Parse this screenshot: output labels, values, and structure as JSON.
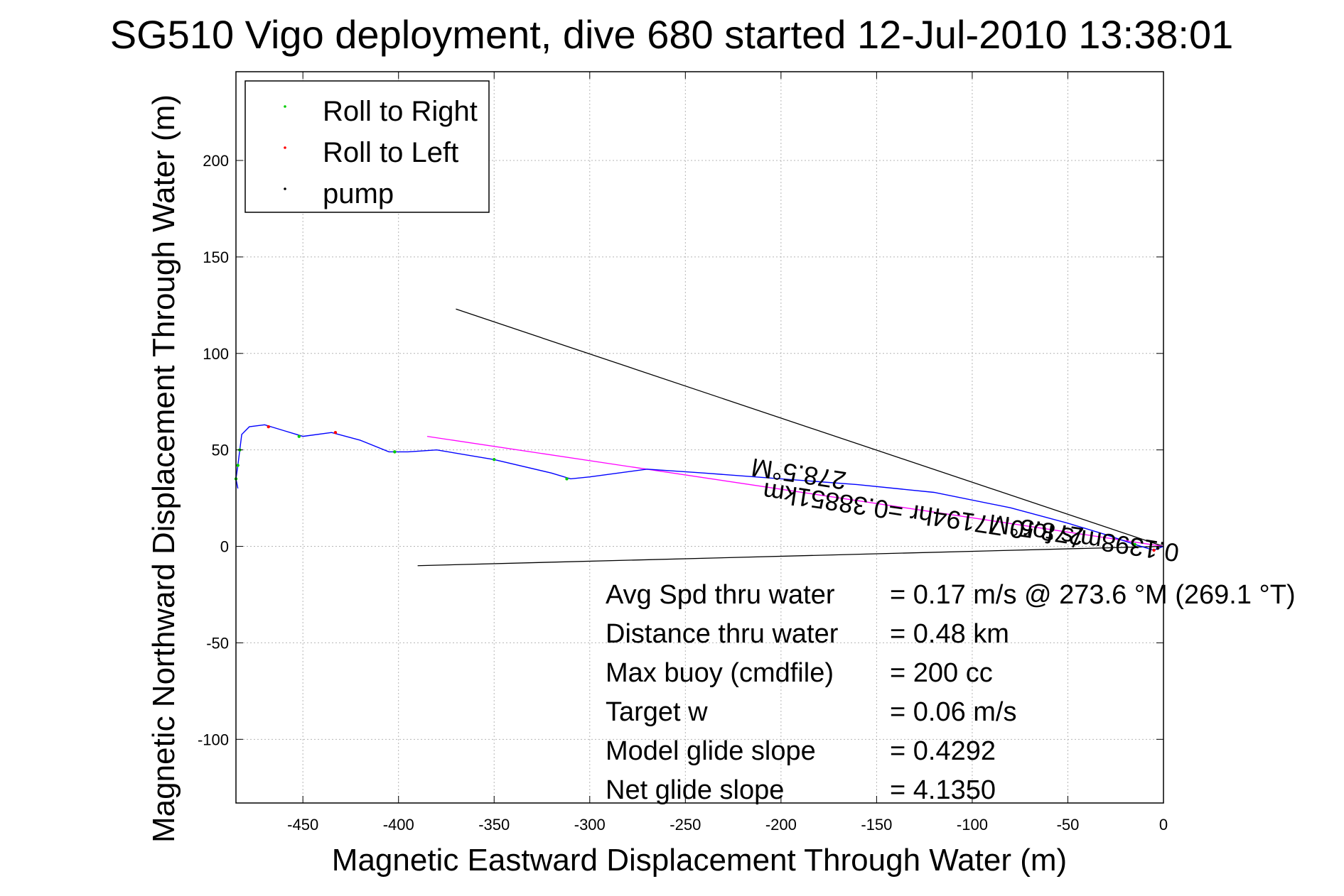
{
  "colors": {
    "track": "#0000ff",
    "roll_right": "#00cc00",
    "roll_left": "#ff0000",
    "pump": "#000000",
    "heading_line": "#ff00ff",
    "cone_lines": "#000000"
  },
  "chart_data": {
    "type": "line",
    "title": "SG510 Vigo deployment, dive 680 started 12-Jul-2010 13:38:01",
    "xlabel": "Magnetic Eastward Displacement Through Water (m)",
    "ylabel": "Magnetic Northward Displacement Through Water (m)",
    "xlim": [
      -485,
      0
    ],
    "ylim": [
      -133,
      246
    ],
    "xticks": [
      -450,
      -400,
      -350,
      -300,
      -250,
      -200,
      -150,
      -100,
      -50,
      0
    ],
    "yticks": [
      -100,
      -50,
      0,
      50,
      100,
      150,
      200
    ],
    "grid": true,
    "legend": {
      "placement": "top-left",
      "entries": [
        "Roll to Right",
        "Roll to Left",
        "pump"
      ]
    },
    "track": {
      "x": [
        0,
        -5,
        -15,
        -30,
        -50,
        -80,
        -120,
        -160,
        -200,
        -240,
        -270,
        -300,
        -310,
        -320,
        -350,
        -380,
        -395,
        -405,
        -420,
        -435,
        -450,
        -460,
        -470,
        -478,
        -482,
        -483,
        -484,
        -485,
        -484
      ],
      "y": [
        0,
        -2,
        1,
        6,
        12,
        20,
        28,
        32,
        35,
        38,
        40,
        36,
        35,
        38,
        45,
        50,
        49,
        49,
        55,
        59,
        57,
        60,
        63,
        62,
        58,
        50,
        42,
        35,
        30
      ]
    },
    "roll_right": {
      "x": [
        -15,
        -312,
        -350,
        -402,
        -452,
        -483,
        -484,
        -485
      ],
      "y": [
        1,
        35,
        45,
        49,
        57,
        50,
        42,
        35
      ]
    },
    "roll_left": {
      "x": [
        -5,
        -433,
        -468
      ],
      "y": [
        -2,
        59,
        62
      ]
    },
    "pump": {
      "x": [
        -3
      ],
      "y": [
        -1
      ]
    },
    "heading_line": {
      "x": [
        -385,
        0
      ],
      "y": [
        57,
        0
      ]
    },
    "cone_lines": [
      {
        "x": [
          0,
          -370
        ],
        "y": [
          0,
          123
        ]
      },
      {
        "x": [
          0,
          -390
        ],
        "y": [
          0,
          -10
        ]
      }
    ],
    "annotations": [
      {
        "text": "278.5°M",
        "x": -190,
        "y": 42,
        "rotate": 188.5
      },
      {
        "text": "0.1398m/s for0.77194hr =0.38851km",
        "x": -100,
        "y": 17,
        "rotate": 188.5
      },
      {
        "text": "278.5°M",
        "x": -66,
        "y": 13,
        "rotate": 188.5
      }
    ],
    "stats": [
      {
        "label": "Avg Spd thru water",
        "value": "=  0.17 m/s @ 273.6 °M (269.1 °T)"
      },
      {
        "label": "Distance thru water",
        "value": "=  0.48 km"
      },
      {
        "label": "Max buoy (cmdfile)",
        "value": "= 200 cc"
      },
      {
        "label": "Target w",
        "value": "= 0.06 m/s"
      },
      {
        "label": "Model glide slope",
        "value": "= 0.4292"
      },
      {
        "label": "Net glide slope",
        "value": "= 4.1350"
      }
    ]
  }
}
